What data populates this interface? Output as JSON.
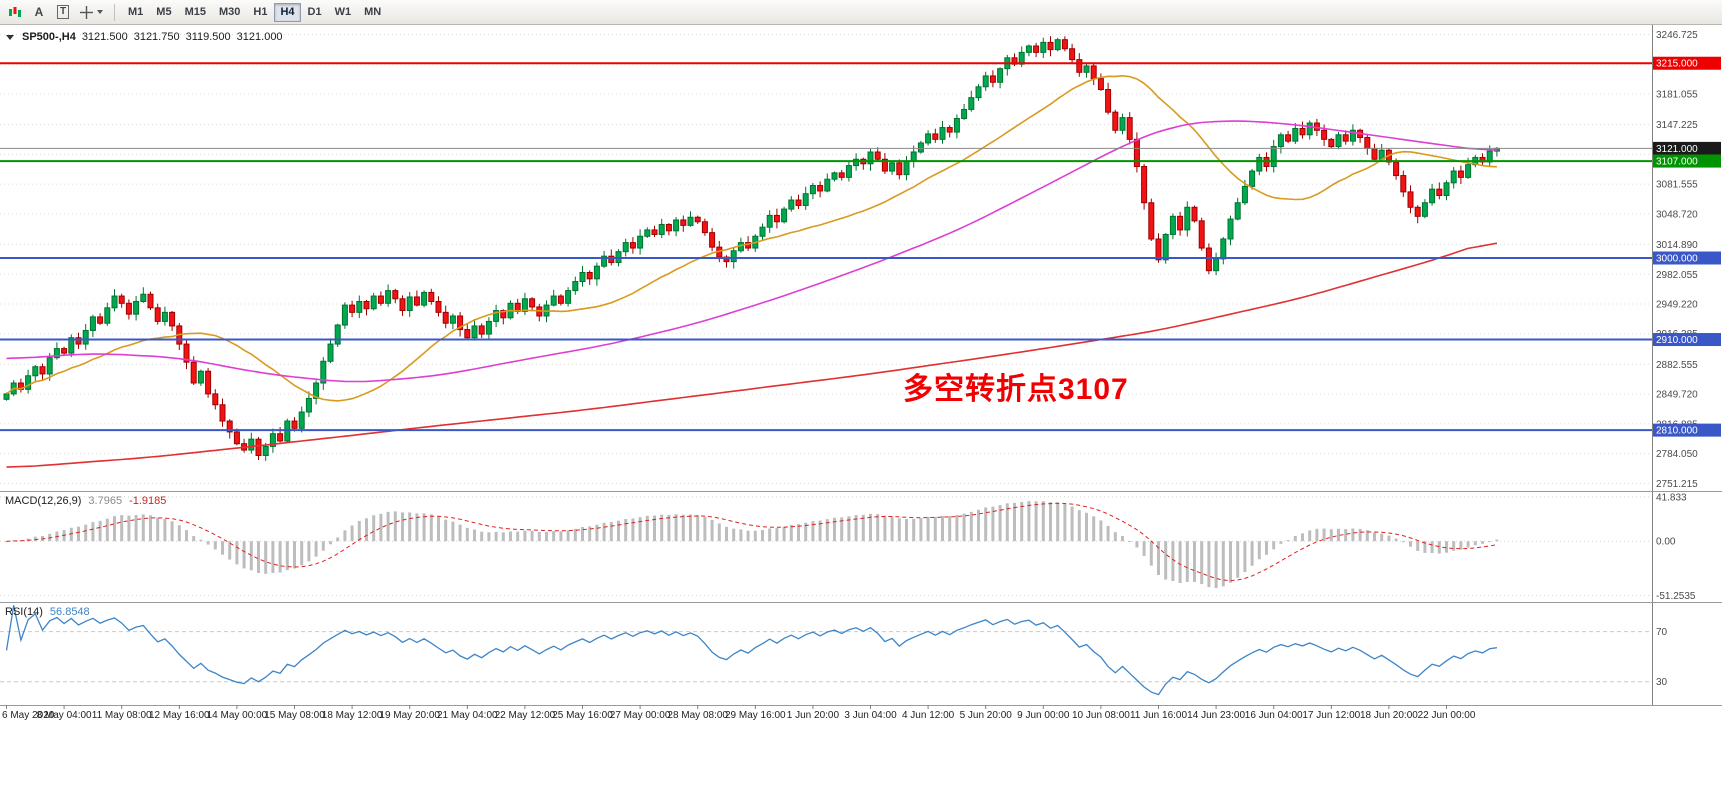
{
  "colors": {
    "up": "#00a84f",
    "up_border": "#00732f",
    "down": "#f21414",
    "down_border": "#9e0000",
    "ma_fast": "#d99a1f",
    "ma_mid": "#dd3fd3",
    "ma_slow": "#e03030",
    "macd_hist": "#bdbdbd",
    "macd_signal": "#dd2222",
    "rsi_line": "#3d85c8",
    "annotation": "#f00000",
    "grid": "#dcdcdc"
  },
  "toolbar": {
    "a_label": "A",
    "t_label": "T",
    "icons": [
      "chart-icon",
      "label-a-icon",
      "text-tool-icon",
      "crosshair-icon"
    ],
    "timeframes": [
      "M1",
      "M5",
      "M15",
      "M30",
      "H1",
      "H4",
      "D1",
      "W1",
      "MN"
    ],
    "active_timeframe": "H4"
  },
  "header": {
    "symbol": "SP500-,H4",
    "open": "3121.500",
    "high": "3121.750",
    "low": "3119.500",
    "close": "3121.000"
  },
  "annotation": {
    "text": "多空转折点3107"
  },
  "price_axis": {
    "labels": [
      {
        "text": "3246.725",
        "price": 3246.725
      },
      {
        "text": "3181.055",
        "price": 3181.055
      },
      {
        "text": "3147.225",
        "price": 3147.225
      },
      {
        "text": "3081.555",
        "price": 3081.555
      },
      {
        "text": "3048.720",
        "price": 3048.72
      },
      {
        "text": "3014.890",
        "price": 3014.89
      },
      {
        "text": "2982.055",
        "price": 2982.055
      },
      {
        "text": "2949.220",
        "price": 2949.22
      },
      {
        "text": "2916.385",
        "price": 2916.385
      },
      {
        "text": "2882.555",
        "price": 2882.555
      },
      {
        "text": "2849.720",
        "price": 2849.72
      },
      {
        "text": "2816.885",
        "price": 2816.885
      },
      {
        "text": "2784.050",
        "price": 2784.05
      },
      {
        "text": "2751.215",
        "price": 2751.215
      }
    ],
    "grid_extra": [
      3213.89,
      3114.39
    ]
  },
  "levels": [
    {
      "label": "3215.000",
      "price": 3215,
      "color": "#ee0000",
      "width": 2
    },
    {
      "label": "3121.000",
      "price": 3121,
      "color": "#888888",
      "badge": "#1a1a1a",
      "width": 1,
      "role": "last-price"
    },
    {
      "label": "3107.000",
      "price": 3107,
      "color": "#009400",
      "width": 2
    },
    {
      "label": "3000.000",
      "price": 3000,
      "color": "#3a57c8",
      "width": 2
    },
    {
      "label": "2910.000",
      "price": 2910,
      "color": "#3a57c8",
      "width": 2
    },
    {
      "label": "2810.000",
      "price": 2810,
      "color": "#3a57c8",
      "width": 2
    }
  ],
  "macd": {
    "title": "MACD(12,26,9)",
    "value_main": "3.7965",
    "value_signal": "-1.9185",
    "range": [
      -55.5,
      45.5
    ],
    "axis": [
      {
        "text": "41.833",
        "value": 41.833
      },
      {
        "text": "0.00",
        "value": 0
      },
      {
        "text": "-51.2535",
        "value": -51.2535
      }
    ],
    "params": {
      "fast": 12,
      "slow": 26,
      "signal": 9
    }
  },
  "rsi": {
    "title": "RSI(14)",
    "value": "56.8548",
    "period": 14,
    "range": [
      13,
      92
    ],
    "levels": [
      {
        "text": "70",
        "value": 70
      },
      {
        "text": "30",
        "value": 30
      }
    ]
  },
  "chart_data": {
    "type": "candlestick",
    "symbol": "SP500-",
    "timeframe": "H4",
    "title": "SP500- H4 with MACD(12,26,9) and RSI(14)",
    "y_range": [
      2745,
      3255
    ],
    "bars_per_label": 8,
    "x_labels": [
      "6 May 2020",
      "8 May 04:00",
      "11 May 08:00",
      "12 May 16:00",
      "14 May 00:00",
      "15 May 08:00",
      "18 May 12:00",
      "19 May 20:00",
      "21 May 04:00",
      "22 May 12:00",
      "25 May 16:00",
      "27 May 00:00",
      "28 May 08:00",
      "29 May 16:00",
      "1 Jun 20:00",
      "3 Jun 04:00",
      "4 Jun 12:00",
      "5 Jun 20:00",
      "9 Jun 00:00",
      "10 Jun 08:00",
      "11 Jun 16:00",
      "14 Jun 23:00",
      "16 Jun 04:00",
      "17 Jun 12:00",
      "18 Jun 20:00",
      "22 Jun 00:00"
    ],
    "closes": [
      2850,
      2862,
      2855,
      2870,
      2880,
      2872,
      2890,
      2900,
      2895,
      2912,
      2905,
      2920,
      2935,
      2928,
      2945,
      2958,
      2950,
      2938,
      2952,
      2960,
      2945,
      2930,
      2940,
      2925,
      2905,
      2885,
      2862,
      2875,
      2850,
      2838,
      2820,
      2808,
      2795,
      2788,
      2800,
      2782,
      2792,
      2806,
      2798,
      2820,
      2812,
      2830,
      2845,
      2862,
      2886,
      2905,
      2926,
      2948,
      2940,
      2952,
      2944,
      2958,
      2950,
      2964,
      2955,
      2942,
      2957,
      2948,
      2962,
      2952,
      2940,
      2928,
      2936,
      2921,
      2912,
      2925,
      2916,
      2930,
      2942,
      2934,
      2950,
      2941,
      2955,
      2946,
      2936,
      2948,
      2958,
      2950,
      2964,
      2974,
      2984,
      2977,
      2991,
      3002,
      2995,
      3007,
      3017,
      3011,
      3024,
      3031,
      3026,
      3037,
      3030,
      3042,
      3036,
      3045,
      3040,
      3028,
      3012,
      3001,
      2996,
      3008,
      3017,
      3011,
      3024,
      3034,
      3047,
      3040,
      3054,
      3064,
      3058,
      3071,
      3080,
      3074,
      3087,
      3094,
      3089,
      3102,
      3109,
      3104,
      3117,
      3109,
      3096,
      3105,
      3092,
      3107,
      3117,
      3127,
      3137,
      3131,
      3144,
      3139,
      3154,
      3164,
      3177,
      3189,
      3201,
      3194,
      3209,
      3221,
      3214,
      3227,
      3234,
      3227,
      3238,
      3230,
      3241,
      3231,
      3219,
      3205,
      3212,
      3198,
      3186,
      3161,
      3141,
      3155,
      3131,
      3101,
      3061,
      3021,
      2998,
      3026,
      3046,
      3031,
      3056,
      3041,
      3011,
      2986,
      2999,
      3021,
      3043,
      3061,
      3079,
      3096,
      3111,
      3101,
      3123,
      3136,
      3129,
      3143,
      3136,
      3149,
      3141,
      3131,
      3123,
      3136,
      3129,
      3141,
      3133,
      3121,
      3109,
      3119,
      3106,
      3091,
      3073,
      3056,
      3046,
      3061,
      3076,
      3069,
      3083,
      3096,
      3089,
      3103,
      3111,
      3106,
      3118,
      3121
    ],
    "overlays": [
      {
        "name": "ma-fast",
        "type": "sma",
        "period": 24,
        "color_key": "ma_fast"
      },
      {
        "name": "ma-mid",
        "type": "points",
        "color_key": "ma_mid",
        "points": [
          [
            0,
            2888
          ],
          [
            12,
            2895
          ],
          [
            24,
            2890
          ],
          [
            36,
            2872
          ],
          [
            48,
            2862
          ],
          [
            60,
            2870
          ],
          [
            72,
            2888
          ],
          [
            84,
            2905
          ],
          [
            96,
            2928
          ],
          [
            108,
            2958
          ],
          [
            120,
            2992
          ],
          [
            132,
            3030
          ],
          [
            140,
            3062
          ],
          [
            148,
            3095
          ],
          [
            156,
            3128
          ],
          [
            162,
            3146
          ],
          [
            168,
            3152
          ],
          [
            176,
            3150
          ],
          [
            184,
            3142
          ],
          [
            192,
            3133
          ],
          [
            200,
            3124
          ],
          [
            207,
            3117
          ]
        ]
      },
      {
        "name": "ma-slow",
        "type": "points",
        "color_key": "ma_slow",
        "points": [
          [
            0,
            2768
          ],
          [
            20,
            2780
          ],
          [
            40,
            2797
          ],
          [
            60,
            2815
          ],
          [
            80,
            2832
          ],
          [
            100,
            2852
          ],
          [
            120,
            2872
          ],
          [
            140,
            2895
          ],
          [
            160,
            2920
          ],
          [
            180,
            2956
          ],
          [
            200,
            3002
          ],
          [
            207,
            3022
          ]
        ]
      }
    ],
    "indicators": [
      "MACD(12,26,9)",
      "RSI(14)"
    ]
  }
}
